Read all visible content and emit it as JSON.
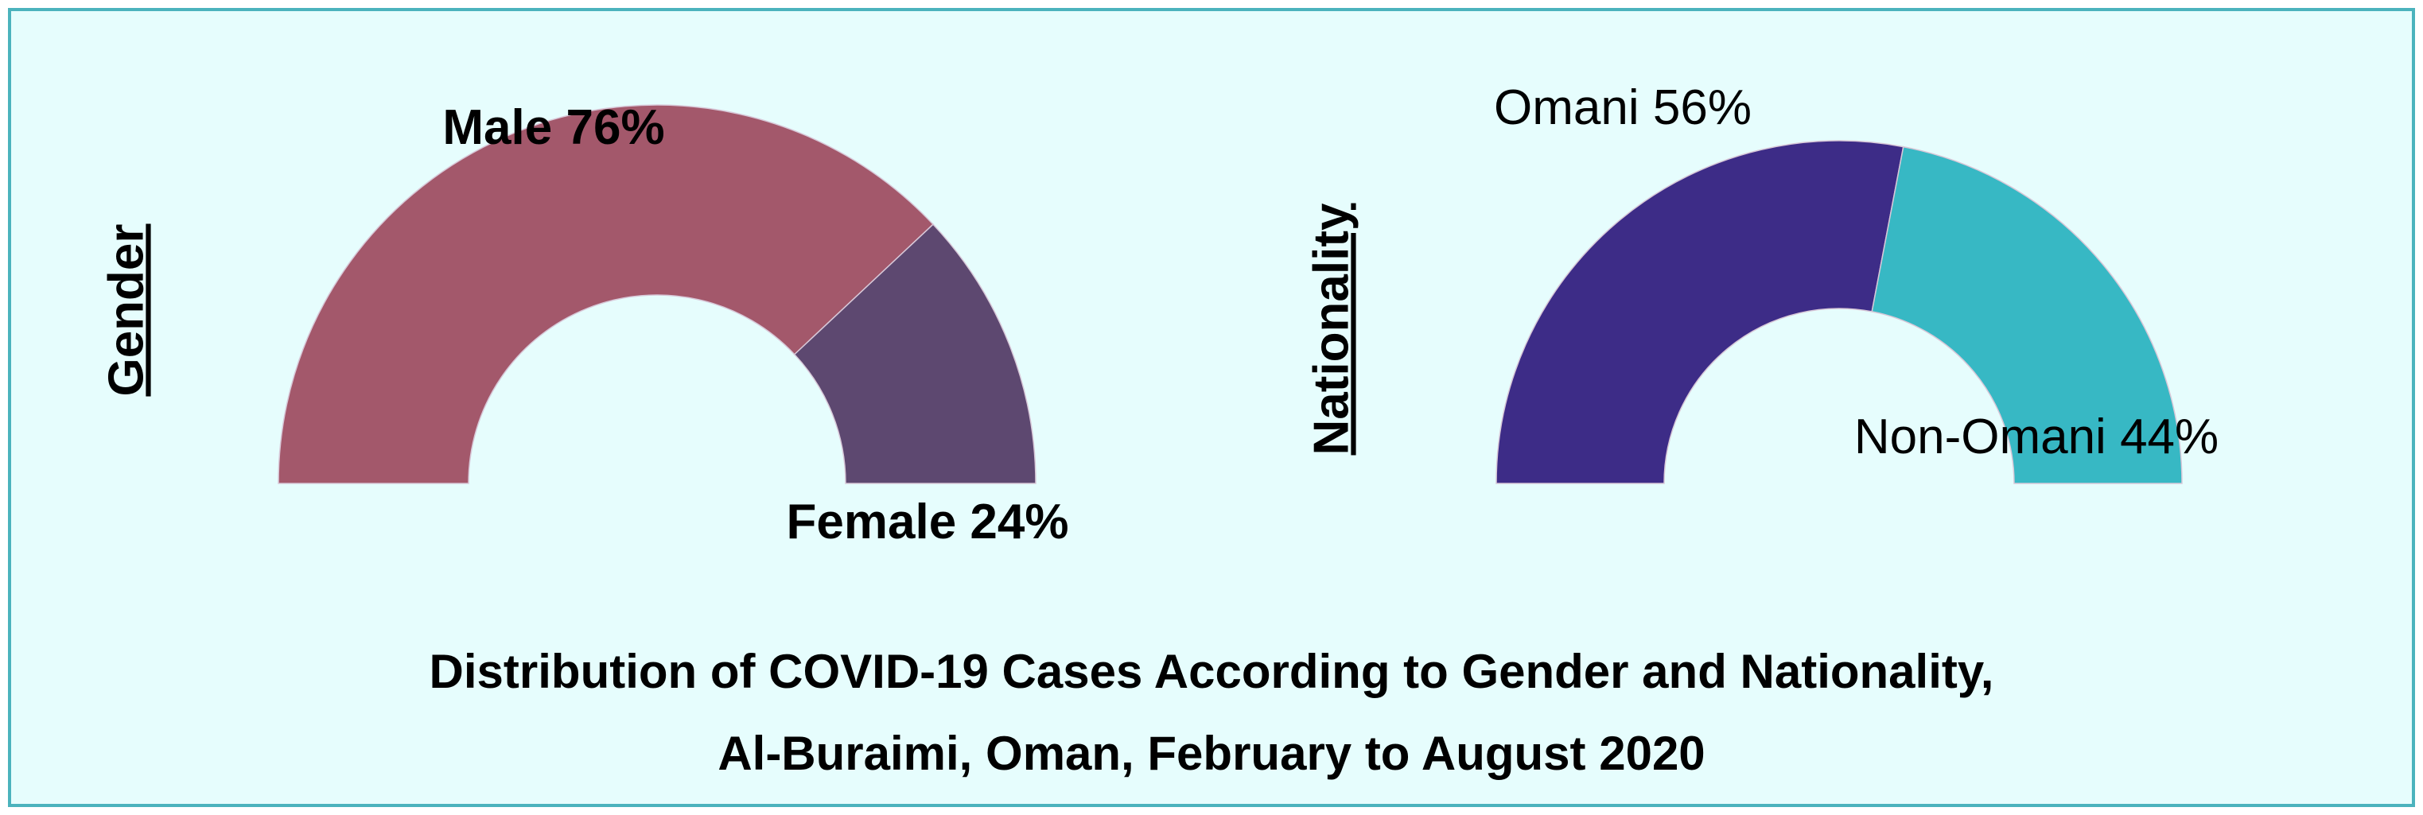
{
  "title": "Distribution of COVID-19 Cases According to Gender and Nationality, Al-Buraimi, Oman, February to August 2020",
  "chart_data": [
    {
      "type": "pie",
      "label": "Gender",
      "categories": [
        "Male",
        "Female"
      ],
      "values": [
        76,
        24
      ],
      "value_labels": [
        "76%",
        "24%"
      ],
      "colors": [
        "#a3586b",
        "#5d4870"
      ]
    },
    {
      "type": "pie",
      "label": "Nationality",
      "categories": [
        "Omani",
        "Non-Omani"
      ],
      "values": [
        56,
        44
      ],
      "value_labels": [
        "56%",
        "44%"
      ],
      "colors": [
        "#3d2c87",
        "#37b8c4"
      ]
    }
  ]
}
